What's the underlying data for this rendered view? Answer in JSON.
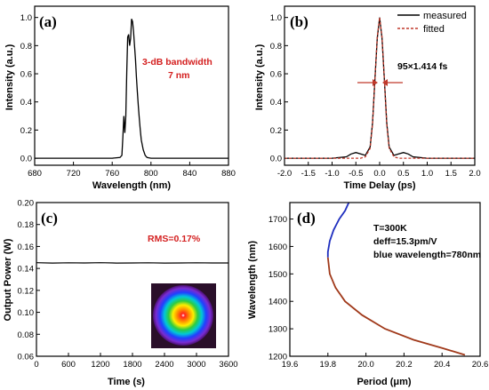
{
  "chart_data": [
    {
      "type": "line",
      "panel_label": "(a)",
      "xlabel": "Wavelength (nm)",
      "ylabel": "Intensity (a.u.)",
      "xlim": [
        680,
        880
      ],
      "ylim": [
        -0.05,
        1.08
      ],
      "xticks": [
        "680",
        "720",
        "760",
        "800",
        "840",
        "880"
      ],
      "yticks": [
        "0.0",
        "0.2",
        "0.4",
        "0.6",
        "0.8",
        "1.0"
      ],
      "x": [
        680,
        760,
        768,
        770,
        771,
        772,
        773,
        774,
        775,
        776,
        777,
        778,
        779,
        780,
        781,
        782,
        783,
        784,
        785,
        786,
        787,
        788,
        789,
        790,
        792,
        794,
        796,
        800,
        880
      ],
      "series": [
        {
          "values": [
            0.0,
            0.0,
            0.005,
            0.02,
            0.15,
            0.3,
            0.18,
            0.3,
            0.62,
            0.86,
            0.88,
            0.8,
            0.85,
            0.99,
            0.97,
            0.9,
            0.8,
            0.7,
            0.58,
            0.47,
            0.37,
            0.28,
            0.2,
            0.13,
            0.06,
            0.02,
            0.005,
            0.0,
            0.0
          ],
          "color": "#000000"
        }
      ],
      "annotation": {
        "line1": "3-dB bandwidth",
        "line2": "7 nm",
        "color": "#d42020"
      },
      "grid": false
    },
    {
      "type": "line",
      "panel_label": "(b)",
      "xlabel": "Time Delay (ps)",
      "ylabel": "Intensity (a.u.)",
      "xlim": [
        -2.0,
        2.0
      ],
      "ylim": [
        -0.05,
        1.08
      ],
      "xticks": [
        "-2.0",
        "-1.5",
        "-1.0",
        "-0.5",
        "0.0",
        "0.5",
        "1.0",
        "1.5",
        "2.0"
      ],
      "yticks": [
        "0.0",
        "0.2",
        "0.4",
        "0.6",
        "0.8",
        "1.0"
      ],
      "x": [
        -2.0,
        -1.0,
        -0.7,
        -0.6,
        -0.5,
        -0.4,
        -0.3,
        -0.2,
        -0.15,
        -0.1,
        -0.05,
        0.0,
        0.05,
        0.1,
        0.15,
        0.2,
        0.3,
        0.4,
        0.5,
        0.6,
        0.7,
        1.0,
        2.0
      ],
      "series": [
        {
          "name": "measured",
          "values": [
            0.0,
            0.0,
            0.01,
            0.03,
            0.04,
            0.03,
            0.02,
            0.08,
            0.25,
            0.55,
            0.85,
            1.0,
            0.85,
            0.55,
            0.25,
            0.08,
            0.02,
            0.03,
            0.04,
            0.03,
            0.01,
            0.0,
            0.0
          ],
          "color": "#000000",
          "dash": false
        },
        {
          "name": "fitted",
          "values": [
            0.0,
            0.0,
            0.0,
            0.0,
            0.0,
            0.0,
            0.01,
            0.07,
            0.24,
            0.55,
            0.86,
            1.0,
            0.86,
            0.55,
            0.24,
            0.07,
            0.01,
            0.0,
            0.0,
            0.0,
            0.0,
            0.0,
            0.0
          ],
          "color": "#c0392b",
          "dash": true
        }
      ],
      "annotation": {
        "text": "95×1.414 fs",
        "color": "#000000",
        "arrow_color": "#c0392b"
      },
      "legend": "top-right",
      "grid": false
    },
    {
      "type": "line",
      "panel_label": "(c)",
      "xlabel": "Time (s)",
      "ylabel": "Output Power (W)",
      "xlim": [
        0,
        3600
      ],
      "ylim": [
        0.06,
        0.2
      ],
      "xticks": [
        "0",
        "600",
        "1200",
        "1800",
        "2400",
        "3000",
        "3600"
      ],
      "yticks": [
        "0.06",
        "0.08",
        "0.10",
        "0.12",
        "0.14",
        "0.16",
        "0.18",
        "0.20"
      ],
      "x": [
        0,
        300,
        600,
        900,
        1200,
        1500,
        1800,
        2100,
        2400,
        2700,
        3000,
        3300,
        3600
      ],
      "series": [
        {
          "values": [
            0.1452,
            0.1449,
            0.1451,
            0.145,
            0.1452,
            0.1449,
            0.145,
            0.1451,
            0.1449,
            0.145,
            0.1451,
            0.145,
            0.145
          ],
          "color": "#000000"
        }
      ],
      "annotation": {
        "text": "RMS=0.17%",
        "color": "#d42020"
      },
      "inset": "beam-profile",
      "grid": false
    },
    {
      "type": "line",
      "panel_label": "(d)",
      "xlabel": "Period (μm)",
      "ylabel": "Wavelength (nm)",
      "xlim": [
        19.6,
        20.6
      ],
      "ylim": [
        1200,
        1760
      ],
      "xticks": [
        "19.6",
        "19.8",
        "20.0",
        "20.2",
        "20.4",
        "20.6"
      ],
      "yticks": [
        "1200",
        "1300",
        "1400",
        "1500",
        "1600",
        "1700"
      ],
      "annotation": {
        "line1": "T=300K",
        "line2": "deff=15.3pm/V",
        "line3": "blue wavelength=780nm"
      },
      "series": [
        {
          "color": "#1f2fbf",
          "points": [
            [
              19.8,
              1560
            ],
            [
              19.8,
              1580
            ],
            [
              19.81,
              1620
            ],
            [
              19.83,
              1660
            ],
            [
              19.86,
              1700
            ],
            [
              19.89,
              1730
            ],
            [
              19.91,
              1760
            ]
          ]
        },
        {
          "color": "#a0391a",
          "points": [
            [
              19.8,
              1560
            ],
            [
              19.81,
              1500
            ],
            [
              19.84,
              1450
            ],
            [
              19.89,
              1400
            ],
            [
              19.98,
              1350
            ],
            [
              20.1,
              1300
            ],
            [
              20.25,
              1260
            ],
            [
              20.4,
              1230
            ],
            [
              20.52,
              1205
            ]
          ]
        }
      ],
      "grid": false
    }
  ]
}
